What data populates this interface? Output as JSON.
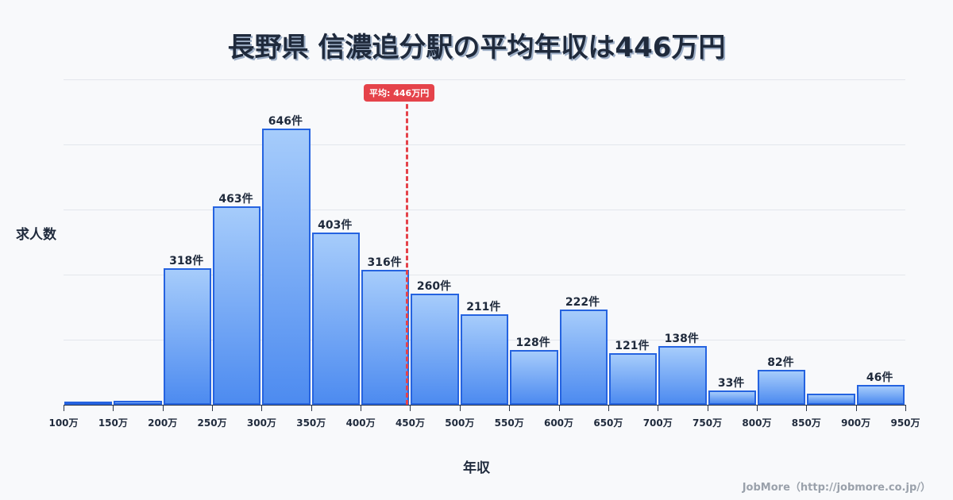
{
  "title": "長野県 信濃追分駅の平均年収は446万円",
  "average_badge": "平均: 446万円",
  "y_axis_label": "求人数",
  "x_axis_label": "年収",
  "credit": "JobMore（http://jobmore.co.jp/）",
  "colors": {
    "bar_border": "#2563e0",
    "bar_top": "#a6ccfb",
    "bar_bottom": "#4d8bf0",
    "average_line": "#e5434a",
    "text": "#1f2a3c"
  },
  "chart_data": {
    "type": "bar",
    "title": "長野県 信濃追分駅の平均年収は446万円",
    "xlabel": "年収",
    "ylabel": "求人数",
    "categories": [
      "100万",
      "150万",
      "200万",
      "250万",
      "300万",
      "350万",
      "400万",
      "450万",
      "500万",
      "550万",
      "600万",
      "650万",
      "700万",
      "750万",
      "800万",
      "850万",
      "900万"
    ],
    "values": [
      5,
      9,
      318,
      463,
      646,
      403,
      316,
      260,
      211,
      128,
      222,
      121,
      138,
      33,
      82,
      26,
      46
    ],
    "labels": [
      "",
      "",
      "318件",
      "463件",
      "646件",
      "403件",
      "316件",
      "260件",
      "211件",
      "128件",
      "222件",
      "121件",
      "138件",
      "33件",
      "82件",
      "",
      "46件"
    ],
    "x_ticks": [
      "100万",
      "150万",
      "200万",
      "250万",
      "300万",
      "350万",
      "400万",
      "450万",
      "500万",
      "550万",
      "600万",
      "650万",
      "700万",
      "750万",
      "800万",
      "850万",
      "900万",
      "950万"
    ],
    "average": 446,
    "average_label": "平均: 446万円",
    "ylim": [
      0,
      760
    ],
    "grid": true
  }
}
